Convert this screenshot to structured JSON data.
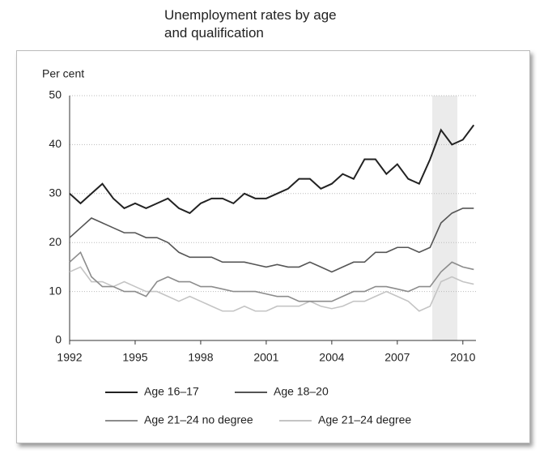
{
  "chart_data": {
    "type": "line",
    "title": "Unemployment rates by age and qualification",
    "y_label": "Per cent",
    "x": [
      1992,
      1992.5,
      1993,
      1993.5,
      1994,
      1994.5,
      1995,
      1995.5,
      1996,
      1996.5,
      1997,
      1997.5,
      1998,
      1998.5,
      1999,
      1999.5,
      2000,
      2000.5,
      2001,
      2001.5,
      2002,
      2002.5,
      2003,
      2003.5,
      2004,
      2004.5,
      2005,
      2005.5,
      2006,
      2006.5,
      2007,
      2007.5,
      2008,
      2008.5,
      2009,
      2009.5,
      2010,
      2010.5
    ],
    "series": [
      {
        "name": "Age 16–17",
        "color": "#222222",
        "values": [
          30,
          28,
          30,
          32,
          29,
          27,
          28,
          27,
          28,
          29,
          27,
          26,
          28,
          29,
          29,
          28,
          30,
          29,
          29,
          30,
          31,
          33,
          33,
          31,
          32,
          34,
          33,
          37,
          37,
          34,
          36,
          33,
          32,
          37,
          43,
          40,
          41,
          44
        ]
      },
      {
        "name": "Age 18–20",
        "color": "#555555",
        "values": [
          21,
          23,
          25,
          24,
          23,
          22,
          22,
          21,
          21,
          20,
          18,
          17,
          17,
          17,
          16,
          16,
          16,
          15.5,
          15,
          15.5,
          15,
          15,
          16,
          15,
          14,
          15,
          16,
          16,
          18,
          18,
          19,
          19,
          18,
          19,
          24,
          26,
          27,
          27
        ]
      },
      {
        "name": "Age 21–24 no degree",
        "color": "#8c8c8c",
        "values": [
          16,
          18,
          13,
          11,
          11,
          10,
          10,
          9,
          12,
          13,
          12,
          12,
          11,
          11,
          10.5,
          10,
          10,
          10,
          9.5,
          9,
          9,
          8,
          8,
          8,
          8,
          9,
          10,
          10,
          11,
          11,
          10.5,
          10,
          11,
          11,
          14,
          16,
          15,
          14.5
        ]
      },
      {
        "name": "Age 21–24 degree",
        "color": "#c4c4c4",
        "values": [
          14,
          15,
          12,
          12,
          11,
          12,
          11,
          10,
          10,
          9,
          8,
          9,
          8,
          7,
          6,
          6,
          7,
          6,
          6,
          7,
          7,
          7,
          8,
          7,
          6.5,
          7,
          8,
          8,
          9,
          10,
          9,
          8,
          6,
          7,
          12,
          13,
          12,
          11.5
        ]
      }
    ],
    "xlim": [
      1992,
      2010.6
    ],
    "xticks": [
      1992,
      1995,
      1998,
      2001,
      2004,
      2007,
      2010
    ],
    "ylim": [
      0,
      50
    ],
    "yticks": [
      0,
      10,
      20,
      30,
      40,
      50
    ],
    "grid": true,
    "shaded_x_range": [
      2008.6,
      2009.75
    ]
  }
}
